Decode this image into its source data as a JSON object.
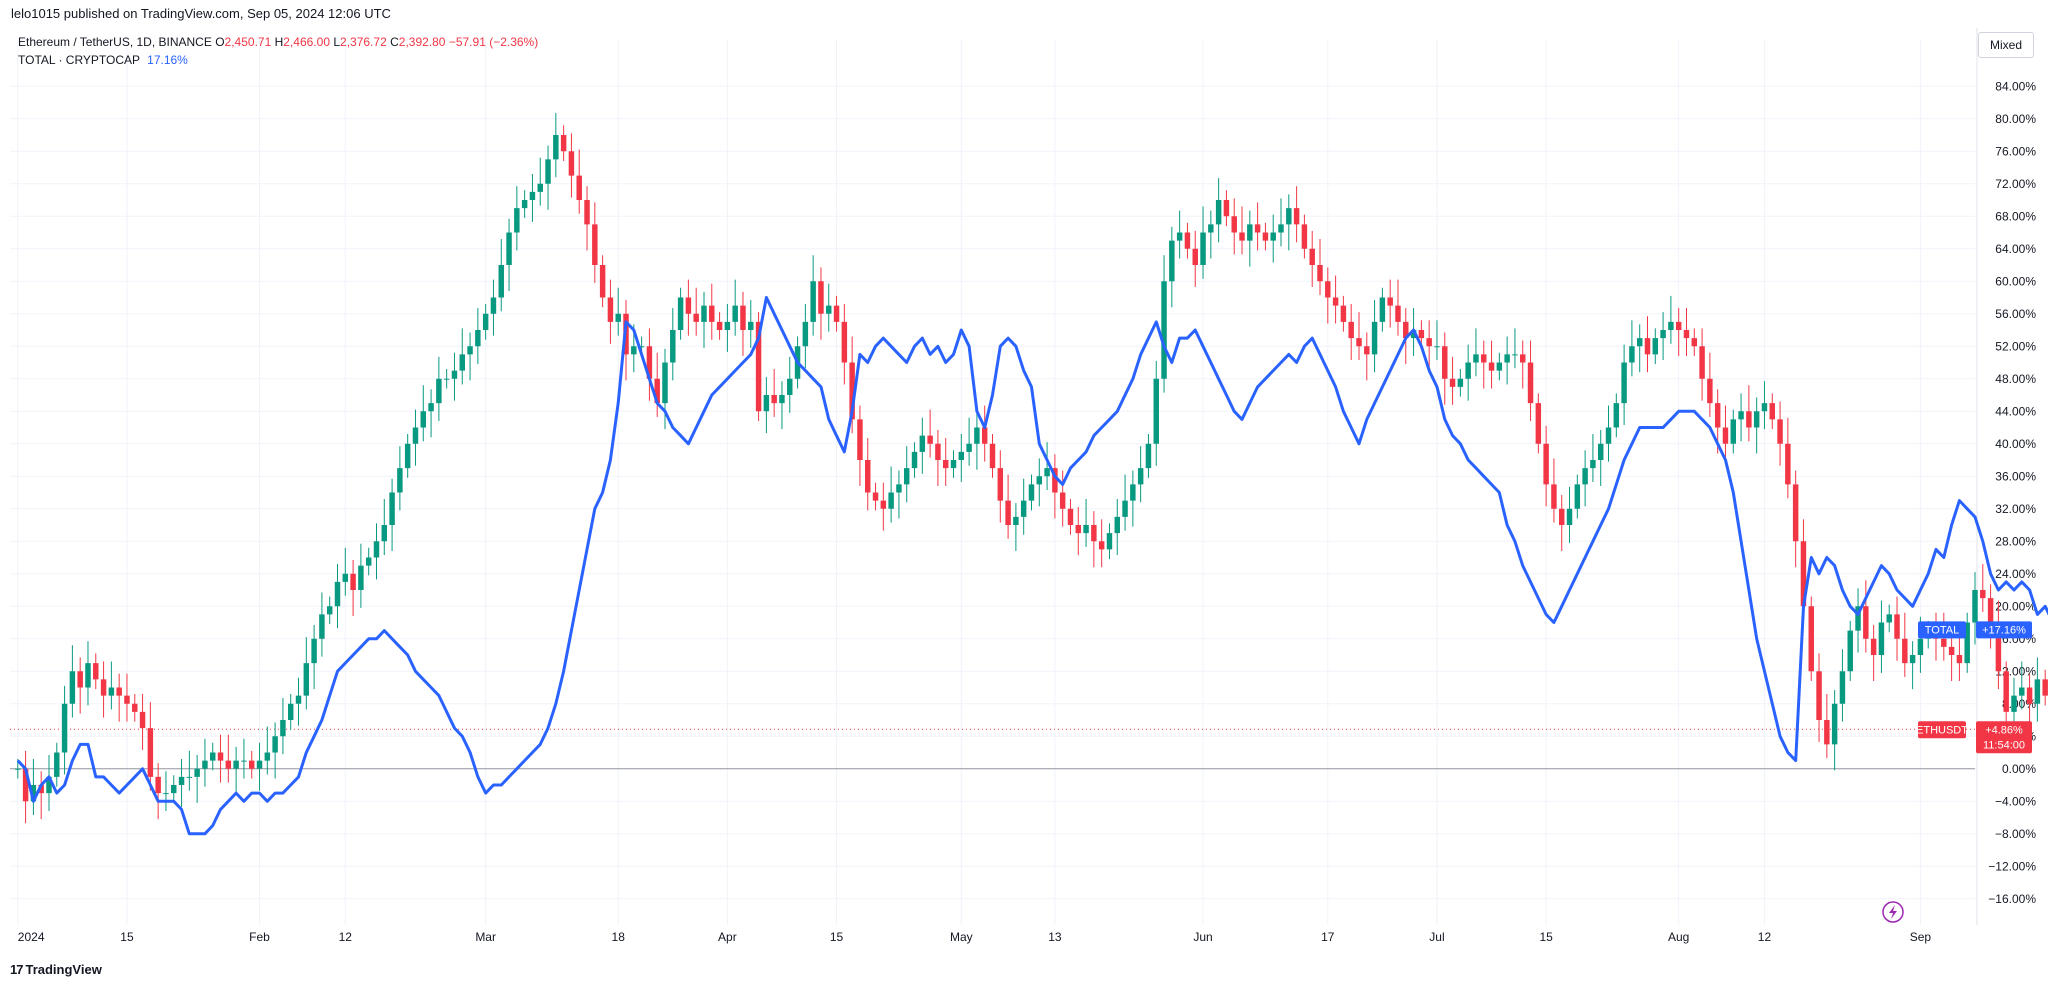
{
  "header": {
    "publisher": "lelo1015 published on TradingView.com, Sep 05, 2024 12:06 UTC"
  },
  "legend": {
    "main_symbol": "Ethereum / TetherUS, 1D, BINANCE",
    "o_label": "O",
    "o_value": "2,450.71",
    "h_label": "H",
    "h_value": "2,466.00",
    "l_label": "L",
    "l_value": "2,376.72",
    "c_label": "C",
    "c_value": "2,392.80",
    "change": "−57.91 (−2.36%)",
    "compare_symbol": "TOTAL · CRYPTOCAP",
    "compare_value": "17.16%"
  },
  "toolbar": {
    "scale_mode": "Mixed"
  },
  "footer": {
    "brand": "TradingView",
    "brand_mark": "17"
  },
  "icons": {
    "lightning": "lightning-icon"
  },
  "colors": {
    "up": "#089981",
    "down": "#f23645",
    "compare": "#2962ff",
    "zero_line": "#9598a1"
  },
  "chart_data": {
    "type": "line",
    "y_unit": "%",
    "ylim": [
      -18,
      86
    ],
    "y_ticks": [
      "84.00%",
      "80.00%",
      "76.00%",
      "72.00%",
      "68.00%",
      "64.00%",
      "60.00%",
      "56.00%",
      "52.00%",
      "48.00%",
      "44.00%",
      "40.00%",
      "36.00%",
      "32.00%",
      "28.00%",
      "24.00%",
      "20.00%",
      "16.00%",
      "12.00%",
      "8.00%",
      "4.00%",
      "0.00%",
      "−4.00%",
      "−8.00%",
      "−12.00%",
      "−16.00%"
    ],
    "y_tick_values": [
      84,
      80,
      76,
      72,
      68,
      64,
      60,
      56,
      52,
      48,
      44,
      40,
      36,
      32,
      28,
      24,
      20,
      16,
      12,
      8,
      4,
      0,
      -4,
      -8,
      -12,
      -16
    ],
    "x_ticks": [
      {
        "label": "2024",
        "day": 0
      },
      {
        "label": "15",
        "day": 14
      },
      {
        "label": "Feb",
        "day": 31
      },
      {
        "label": "12",
        "day": 42
      },
      {
        "label": "Mar",
        "day": 60
      },
      {
        "label": "18",
        "day": 77
      },
      {
        "label": "Apr",
        "day": 91
      },
      {
        "label": "15",
        "day": 105
      },
      {
        "label": "May",
        "day": 121
      },
      {
        "label": "13",
        "day": 133
      },
      {
        "label": "Jun",
        "day": 152
      },
      {
        "label": "17",
        "day": 168
      },
      {
        "label": "Jul",
        "day": 182
      },
      {
        "label": "15",
        "day": 196
      },
      {
        "label": "Aug",
        "day": 213
      },
      {
        "label": "12",
        "day": 224
      },
      {
        "label": "Sep",
        "day": 244
      }
    ],
    "x_range_days": [
      -1,
      251
    ],
    "price_badge": {
      "name": "ETHUSDT",
      "value": "+4.86%",
      "countdown": "11:54:00",
      "y": 4.86
    },
    "compare_badge": {
      "name": "TOTAL",
      "value": "+17.16%",
      "y": 17.16
    },
    "series": [
      {
        "name": "ETHUSDT",
        "kind": "candles",
        "closes": [
          0,
          -4,
          -2,
          -3,
          -1,
          2,
          8,
          12,
          10,
          13,
          11,
          9,
          10,
          9,
          8,
          7,
          5,
          -1,
          -3,
          -3,
          -2,
          -1,
          -1,
          0,
          1,
          2,
          1,
          0,
          1,
          1,
          0,
          1,
          2,
          4,
          6,
          8,
          9,
          13,
          16,
          19,
          20,
          23,
          24,
          22,
          25,
          26,
          28,
          30,
          34,
          37,
          40,
          42,
          44,
          45,
          48,
          48,
          49,
          51,
          52,
          54,
          56,
          58,
          62,
          66,
          69,
          70,
          71,
          72,
          75,
          78,
          76,
          73,
          70,
          67,
          62,
          58,
          55,
          56,
          51,
          52,
          52,
          48,
          45,
          50,
          54,
          58,
          56,
          55,
          57,
          55,
          54,
          55,
          57,
          54,
          55,
          44,
          46,
          45,
          46,
          48,
          52,
          55,
          60,
          56,
          57,
          55,
          50,
          43,
          38,
          34,
          33,
          32,
          34,
          35,
          37,
          39,
          41,
          40,
          38,
          37,
          38,
          39,
          40,
          42,
          40,
          37,
          33,
          30,
          31,
          33,
          35,
          36,
          37,
          34,
          32,
          30,
          29,
          30,
          28,
          27,
          29,
          31,
          33,
          35,
          37,
          40,
          48,
          60,
          65,
          66,
          64,
          62,
          66,
          67,
          70,
          68,
          66,
          65,
          67,
          66,
          65,
          66,
          67,
          69,
          67,
          64,
          62,
          60,
          58,
          57,
          55,
          53,
          52,
          51,
          55,
          58,
          57,
          55,
          53,
          54,
          53,
          52,
          52,
          48,
          47,
          48,
          50,
          51,
          50,
          49,
          50,
          51,
          51,
          50,
          45,
          40,
          35,
          32,
          30,
          32,
          35,
          37,
          38,
          40,
          42,
          45,
          50,
          52,
          53,
          51,
          53,
          54,
          55,
          54,
          53,
          52,
          48,
          45,
          42,
          40,
          43,
          44,
          42,
          44,
          45,
          43,
          40,
          35,
          28,
          20,
          12,
          6,
          3,
          8,
          12,
          17,
          20,
          16,
          14,
          18,
          19,
          16,
          13,
          14,
          16,
          17,
          16,
          15,
          14,
          13,
          18,
          22,
          21,
          18,
          12,
          7,
          9,
          10,
          8,
          11,
          9,
          6,
          4.86
        ]
      },
      {
        "name": "TOTAL",
        "kind": "line",
        "values": [
          1,
          0,
          -4,
          -2,
          -1,
          -3,
          -2,
          1,
          3,
          3,
          -1,
          -1,
          -2,
          -3,
          -2,
          -1,
          0,
          -2,
          -4,
          -4,
          -4,
          -5,
          -8,
          -8,
          -8,
          -7,
          -5,
          -4,
          -3,
          -4,
          -3,
          -3,
          -4,
          -3,
          -3,
          -2,
          -1,
          2,
          4,
          6,
          9,
          12,
          13,
          14,
          15,
          16,
          16,
          17,
          16,
          15,
          14,
          12,
          11,
          10,
          9,
          7,
          5,
          4,
          2,
          -1,
          -3,
          -2,
          -2,
          -1,
          0,
          1,
          2,
          3,
          5,
          8,
          12,
          17,
          22,
          27,
          32,
          34,
          38,
          45,
          55,
          54,
          51,
          48,
          45,
          44,
          42,
          41,
          40,
          42,
          44,
          46,
          47,
          48,
          49,
          50,
          51,
          53,
          58,
          56,
          54,
          52,
          50,
          49,
          48,
          47,
          43,
          41,
          39,
          44,
          51,
          50,
          52,
          53,
          52,
          51,
          50,
          52,
          53,
          51,
          52,
          50,
          51,
          54,
          52,
          44,
          42,
          46,
          52,
          53,
          52,
          49,
          47,
          40,
          38,
          36,
          35,
          37,
          38,
          39,
          41,
          42,
          43,
          44,
          46,
          48,
          51,
          53,
          55,
          52,
          50,
          53,
          53,
          54,
          52,
          50,
          48,
          46,
          44,
          43,
          45,
          47,
          48,
          49,
          50,
          51,
          50,
          52,
          53,
          51,
          49,
          47,
          44,
          42,
          40,
          43,
          45,
          47,
          49,
          51,
          53,
          54,
          52,
          49,
          47,
          43,
          41,
          40,
          38,
          37,
          36,
          35,
          34,
          30,
          28,
          25,
          23,
          21,
          19,
          18,
          20,
          22,
          24,
          26,
          28,
          30,
          32,
          35,
          38,
          40,
          42,
          42,
          42,
          42,
          43,
          44,
          44,
          44,
          43,
          42,
          40,
          38,
          34,
          28,
          22,
          16,
          12,
          8,
          4,
          2,
          1,
          20,
          26,
          24,
          26,
          25,
          22,
          20,
          19,
          21,
          23,
          25,
          24,
          22,
          21,
          20,
          22,
          24,
          27,
          26,
          30,
          33,
          32,
          31,
          28,
          24,
          22,
          23,
          22,
          23,
          22,
          19,
          20,
          18
        ]
      }
    ]
  }
}
